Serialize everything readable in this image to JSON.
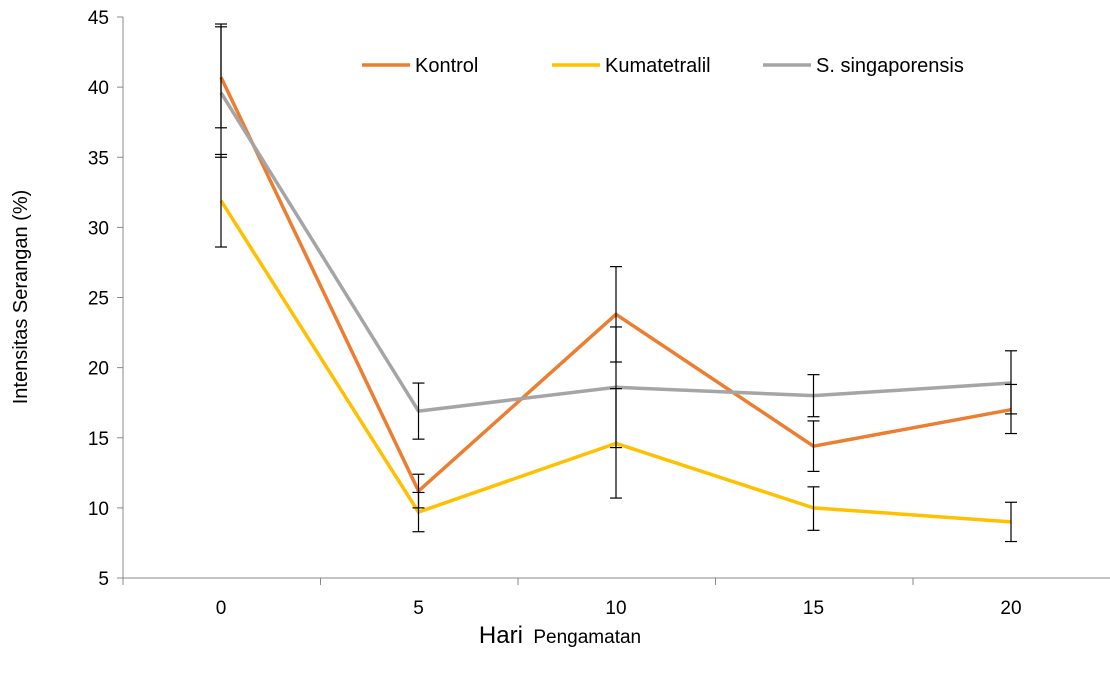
{
  "chart_data": {
    "type": "line",
    "xlabel_main": "Hari",
    "xlabel_sub": "Pengamatan",
    "ylabel": "Intensitas Serangan (%)",
    "categories": [
      "0",
      "5",
      "10",
      "15",
      "20"
    ],
    "ylim": [
      5,
      45
    ],
    "yticks": [
      5,
      10,
      15,
      20,
      25,
      30,
      35,
      40,
      45
    ],
    "grid": false,
    "legend": "top",
    "series": [
      {
        "name": "Kontrol",
        "color": "#ED7D31",
        "values": [
          40.7,
          11.2,
          23.8,
          14.4,
          17.0
        ],
        "err_low": [
          35.0,
          10.0,
          20.4,
          12.6,
          15.3
        ],
        "err_high": [
          44.5,
          12.4,
          27.2,
          16.2,
          18.8
        ]
      },
      {
        "name": "Kumatetralil",
        "color": "#FFC000",
        "values": [
          31.9,
          9.7,
          14.6,
          10.0,
          9.0
        ],
        "err_low": [
          28.6,
          8.3,
          10.7,
          8.4,
          7.6
        ],
        "err_high": [
          35.2,
          11.1,
          18.5,
          11.5,
          10.4
        ]
      },
      {
        "name": "S. singaporensis",
        "color": "#A5A5A5",
        "values": [
          39.6,
          16.9,
          18.6,
          18.0,
          18.9
        ],
        "err_low": [
          37.1,
          14.9,
          14.3,
          16.5,
          16.7
        ],
        "err_high": [
          44.3,
          18.9,
          22.9,
          19.5,
          21.2
        ]
      }
    ]
  }
}
